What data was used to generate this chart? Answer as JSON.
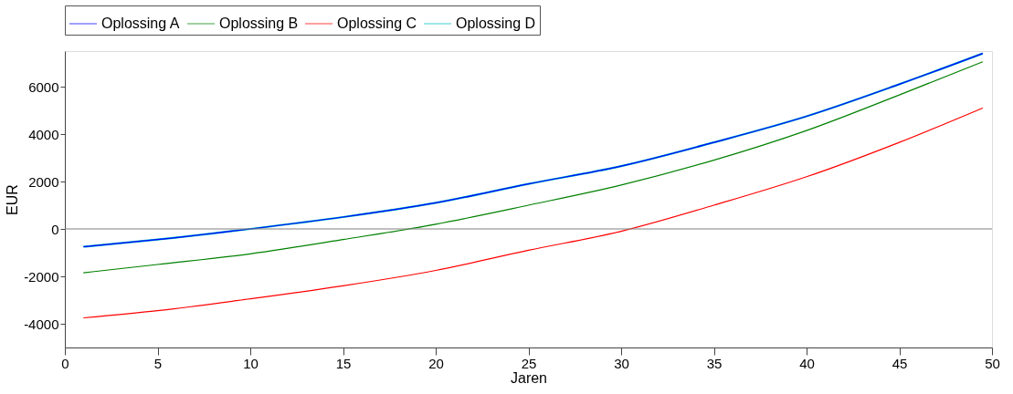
{
  "chart_data": {
    "type": "line",
    "xlabel": "Jaren",
    "ylabel": "EUR",
    "xlim": [
      0,
      50
    ],
    "xticks": [
      0,
      5,
      10,
      15,
      20,
      25,
      30,
      35,
      40,
      45,
      50
    ],
    "ylim": [
      -5000,
      7500
    ],
    "yticks": [
      -4000,
      -2000,
      0,
      2000,
      4000,
      6000
    ],
    "grid": false,
    "legend": "top",
    "line_style": "solid",
    "x": [
      1,
      5,
      10,
      15,
      20,
      25,
      30,
      35,
      40,
      45,
      49.5
    ],
    "series": [
      {
        "name": "Oplossing A",
        "color": "#0000ff",
        "values": [
          -750,
          -450,
          0,
          500,
          1100,
          1900,
          2650,
          3650,
          4750,
          6100,
          7400
        ]
      },
      {
        "name": "Oplossing B",
        "color": "#008000",
        "values": [
          -1850,
          -1500,
          -1050,
          -450,
          200,
          1000,
          1850,
          2900,
          4150,
          5650,
          7050
        ]
      },
      {
        "name": "Oplossing C",
        "color": "#ff0000",
        "values": [
          -3750,
          -3450,
          -2950,
          -2400,
          -1750,
          -900,
          -100,
          1000,
          2200,
          3650,
          5100
        ]
      },
      {
        "name": "Oplossing D",
        "color": "#00c0c0",
        "values": [
          -750,
          -450,
          0,
          500,
          1100,
          1900,
          2650,
          3650,
          4750,
          6100,
          7400
        ]
      }
    ],
    "ref_lines": [
      {
        "axis": "y",
        "value": 0,
        "color": "#808080"
      }
    ]
  }
}
